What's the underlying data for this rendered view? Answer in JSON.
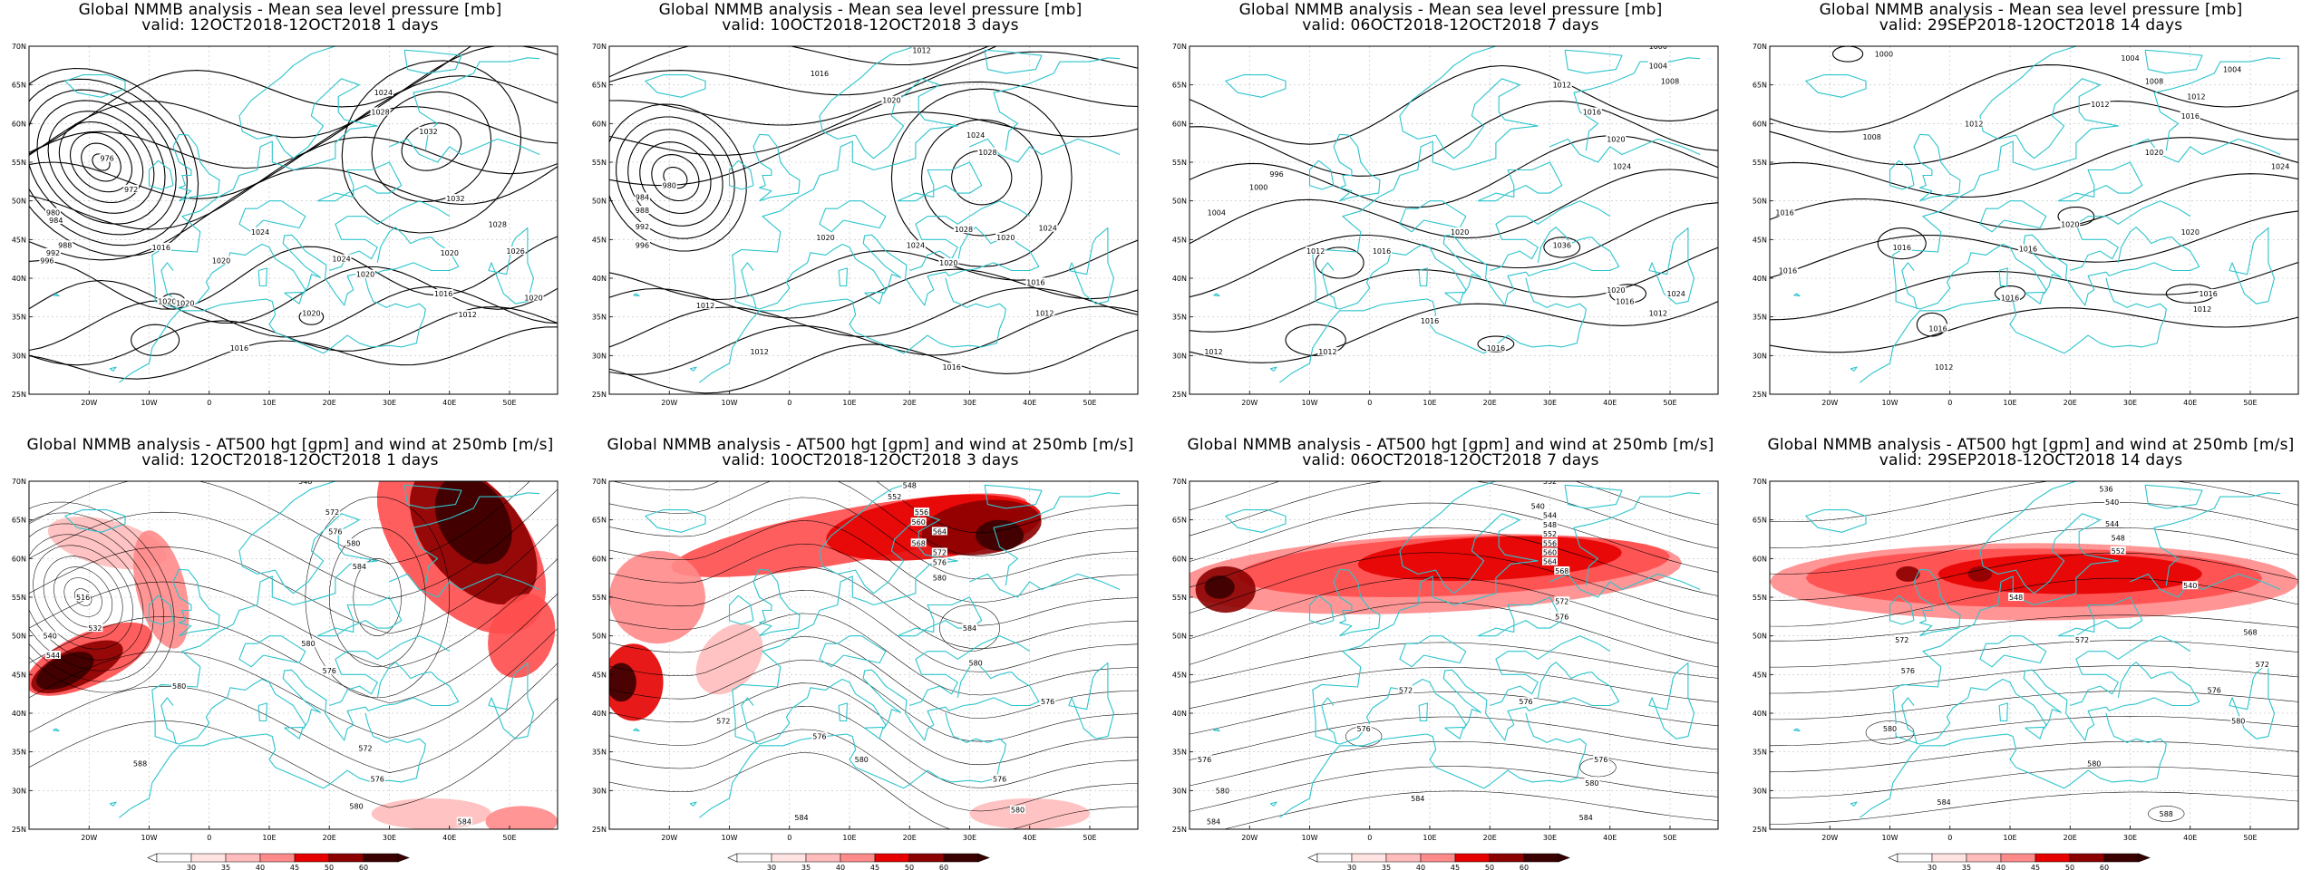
{
  "colors": {
    "coast": "#2cc4cc",
    "contour": "#000000",
    "wind_scale": [
      "#ffe3e3",
      "#ffbcbc",
      "#ff8a8a",
      "#ff4d4d",
      "#e60000",
      "#8c0000",
      "#3a0000"
    ]
  },
  "chart_data": [
    {
      "type": "contour-map",
      "title": "Global NMMB analysis - Mean sea level pressure [mb]",
      "subtitle": "valid: 12OCT2018-12OCT2018  1 days",
      "x_ticks": [
        "20W",
        "10W",
        "0",
        "10E",
        "20E",
        "30E",
        "40E",
        "50E"
      ],
      "y_ticks": [
        "70N",
        "65N",
        "60N",
        "55N",
        "50N",
        "45N",
        "40N",
        "35N",
        "30N",
        "25N"
      ],
      "contour_labels": [
        {
          "text": "976",
          "lon": -17,
          "lat": 55.5
        },
        {
          "text": "972",
          "lon": -13,
          "lat": 51.5
        },
        {
          "text": "980",
          "lon": -26,
          "lat": 48.5
        },
        {
          "text": "984",
          "lon": -25.5,
          "lat": 47.5
        },
        {
          "text": "988",
          "lon": -24,
          "lat": 44.3
        },
        {
          "text": "992",
          "lon": -26,
          "lat": 43.3
        },
        {
          "text": "996",
          "lon": -27,
          "lat": 42.3
        },
        {
          "text": "1016",
          "lon": -8,
          "lat": 44
        },
        {
          "text": "1020",
          "lon": 2,
          "lat": 42.3
        },
        {
          "text": "1024",
          "lon": 8.5,
          "lat": 46
        },
        {
          "text": "1020",
          "lon": -7,
          "lat": 37
        },
        {
          "text": "1020",
          "lon": -4,
          "lat": 36.8
        },
        {
          "text": "1020",
          "lon": 17,
          "lat": 35.5
        },
        {
          "text": "1016",
          "lon": 5,
          "lat": 31
        },
        {
          "text": "1024",
          "lon": 22,
          "lat": 42.5
        },
        {
          "text": "1024",
          "lon": 29,
          "lat": 64
        },
        {
          "text": "1028",
          "lon": 28.5,
          "lat": 61.5
        },
        {
          "text": "1032",
          "lon": 36.5,
          "lat": 59
        },
        {
          "text": "1032",
          "lon": 41,
          "lat": 50.3
        },
        {
          "text": "1028",
          "lon": 48,
          "lat": 47
        },
        {
          "text": "1020",
          "lon": 26,
          "lat": 40.5
        },
        {
          "text": "1020",
          "lon": 40,
          "lat": 43.3
        },
        {
          "text": "1026",
          "lon": 51,
          "lat": 43.5
        },
        {
          "text": "1020",
          "lon": 54,
          "lat": 37.5
        },
        {
          "text": "1016",
          "lon": 39,
          "lat": 38
        },
        {
          "text": "1012",
          "lon": 43,
          "lat": 35.3
        }
      ]
    },
    {
      "type": "contour-map",
      "title": "Global NMMB analysis - Mean sea level pressure [mb]",
      "subtitle": "valid: 10OCT2018-12OCT2018  3 days",
      "x_ticks": [
        "20W",
        "10W",
        "0",
        "10E",
        "20E",
        "30E",
        "40E",
        "50E"
      ],
      "y_ticks": [
        "70N",
        "65N",
        "60N",
        "55N",
        "50N",
        "45N",
        "40N",
        "35N",
        "30N",
        "25N"
      ],
      "contour_labels": [
        {
          "text": "980",
          "lon": -20,
          "lat": 52
        },
        {
          "text": "984",
          "lon": -24.5,
          "lat": 50.5
        },
        {
          "text": "988",
          "lon": -24.5,
          "lat": 48.8
        },
        {
          "text": "992",
          "lon": -24.5,
          "lat": 46.7
        },
        {
          "text": "996",
          "lon": -24.5,
          "lat": 44.3
        },
        {
          "text": "1012",
          "lon": -14,
          "lat": 36.5
        },
        {
          "text": "1012",
          "lon": -5,
          "lat": 30.5
        },
        {
          "text": "1016",
          "lon": 5,
          "lat": 66.5
        },
        {
          "text": "1020",
          "lon": 17,
          "lat": 63
        },
        {
          "text": "1024",
          "lon": 31,
          "lat": 58.5
        },
        {
          "text": "1028",
          "lon": 33,
          "lat": 56.3
        },
        {
          "text": "1020",
          "lon": 6,
          "lat": 45.3
        },
        {
          "text": "1024",
          "lon": 21,
          "lat": 44.3
        },
        {
          "text": "1020",
          "lon": 26.5,
          "lat": 42
        },
        {
          "text": "1028",
          "lon": 29,
          "lat": 46.3
        },
        {
          "text": "1020",
          "lon": 36,
          "lat": 45.3
        },
        {
          "text": "1024",
          "lon": 43,
          "lat": 46.5
        },
        {
          "text": "1016",
          "lon": 41,
          "lat": 39.5
        },
        {
          "text": "1012",
          "lon": 42.5,
          "lat": 35.5
        },
        {
          "text": "1016",
          "lon": 27,
          "lat": 28.5
        },
        {
          "text": "1012",
          "lon": 22,
          "lat": 69.5
        }
      ]
    },
    {
      "type": "contour-map",
      "title": "Global NMMB analysis - Mean sea level pressure [mb]",
      "subtitle": "valid: 06OCT2018-12OCT2018  7 days",
      "x_ticks": [
        "20W",
        "10W",
        "0",
        "10E",
        "20E",
        "30E",
        "40E",
        "50E"
      ],
      "y_ticks": [
        "70N",
        "65N",
        "60N",
        "55N",
        "50N",
        "45N",
        "40N",
        "35N",
        "30N",
        "25N"
      ],
      "contour_labels": [
        {
          "text": "1000",
          "lon": 48,
          "lat": 70
        },
        {
          "text": "1004",
          "lon": 48,
          "lat": 67.5
        },
        {
          "text": "1008",
          "lon": 50,
          "lat": 65.5
        },
        {
          "text": "1012",
          "lon": 32,
          "lat": 65
        },
        {
          "text": "1016",
          "lon": 37,
          "lat": 61.5
        },
        {
          "text": "1020",
          "lon": 41,
          "lat": 58
        },
        {
          "text": "1024",
          "lon": 42,
          "lat": 54.5
        },
        {
          "text": "996",
          "lon": -15.5,
          "lat": 53.5
        },
        {
          "text": "1000",
          "lon": -18.5,
          "lat": 51.8
        },
        {
          "text": "1004",
          "lon": -25.5,
          "lat": 48.5
        },
        {
          "text": "1012",
          "lon": -9,
          "lat": 43.5
        },
        {
          "text": "1016",
          "lon": 2,
          "lat": 43.5
        },
        {
          "text": "1020",
          "lon": 15,
          "lat": 46
        },
        {
          "text": "1036",
          "lon": 32,
          "lat": 44.3
        },
        {
          "text": "1020",
          "lon": 41,
          "lat": 38.5
        },
        {
          "text": "1016",
          "lon": 42.5,
          "lat": 37
        },
        {
          "text": "1024",
          "lon": 51,
          "lat": 38
        },
        {
          "text": "1012",
          "lon": 48,
          "lat": 35.5
        },
        {
          "text": "1016",
          "lon": 10,
          "lat": 34.5
        },
        {
          "text": "1016",
          "lon": 21,
          "lat": 31
        },
        {
          "text": "1012",
          "lon": -7,
          "lat": 30.5
        },
        {
          "text": "1012",
          "lon": -26,
          "lat": 30.5
        }
      ]
    },
    {
      "type": "contour-map",
      "title": "Global NMMB analysis - Mean sea level pressure [mb]",
      "subtitle": "valid: 29SEP2018-12OCT2018  14 days",
      "x_ticks": [
        "20W",
        "10W",
        "0",
        "10E",
        "20E",
        "30E",
        "40E",
        "50E"
      ],
      "y_ticks": [
        "70N",
        "65N",
        "60N",
        "55N",
        "50N",
        "45N",
        "40N",
        "35N",
        "30N",
        "25N"
      ],
      "contour_labels": [
        {
          "text": "1000",
          "lon": -11,
          "lat": 69
        },
        {
          "text": "1004",
          "lon": 30,
          "lat": 68.5
        },
        {
          "text": "1004",
          "lon": 47,
          "lat": 67
        },
        {
          "text": "1008",
          "lon": 34,
          "lat": 65.5
        },
        {
          "text": "1012",
          "lon": 25,
          "lat": 62.5
        },
        {
          "text": "1012",
          "lon": 41,
          "lat": 63.5
        },
        {
          "text": "1016",
          "lon": 40,
          "lat": 61
        },
        {
          "text": "1008",
          "lon": -13,
          "lat": 58.3
        },
        {
          "text": "1012",
          "lon": 4,
          "lat": 60
        },
        {
          "text": "1020",
          "lon": 34,
          "lat": 56.3
        },
        {
          "text": "1024",
          "lon": 55,
          "lat": 54.5
        },
        {
          "text": "1016",
          "lon": -27.5,
          "lat": 48.5
        },
        {
          "text": "1016",
          "lon": -8,
          "lat": 44
        },
        {
          "text": "1016",
          "lon": 13,
          "lat": 43.8
        },
        {
          "text": "1020",
          "lon": 20,
          "lat": 47
        },
        {
          "text": "1020",
          "lon": 40,
          "lat": 46
        },
        {
          "text": "1016",
          "lon": -27,
          "lat": 41
        },
        {
          "text": "1016",
          "lon": 10,
          "lat": 37.5
        },
        {
          "text": "1016",
          "lon": 43,
          "lat": 38
        },
        {
          "text": "1012",
          "lon": 42,
          "lat": 36
        },
        {
          "text": "1016",
          "lon": -2,
          "lat": 33.5
        },
        {
          "text": "1012",
          "lon": -1,
          "lat": 28.5
        }
      ]
    },
    {
      "type": "contour-map",
      "title": "Global NMMB analysis - AT500 hgt [gpm] and wind at 250mb [m/s]",
      "subtitle": "valid: 12OCT2018-12OCT2018  1 days",
      "x_ticks": [
        "20W",
        "10W",
        "0",
        "10E",
        "20E",
        "30E",
        "40E",
        "50E"
      ],
      "y_ticks": [
        "70N",
        "65N",
        "60N",
        "55N",
        "50N",
        "45N",
        "40N",
        "35N",
        "30N",
        "25N"
      ],
      "colorbar": [
        "30",
        "35",
        "40",
        "45",
        "50",
        "60"
      ],
      "contour_labels": [
        {
          "text": "516",
          "lon": -21,
          "lat": 55
        },
        {
          "text": "532",
          "lon": -19,
          "lat": 51
        },
        {
          "text": "540",
          "lon": -26.5,
          "lat": 50
        },
        {
          "text": "544",
          "lon": -26,
          "lat": 47.5
        },
        {
          "text": "548",
          "lon": 16,
          "lat": 70
        },
        {
          "text": "572",
          "lon": 20.5,
          "lat": 66
        },
        {
          "text": "576",
          "lon": 21,
          "lat": 63.5
        },
        {
          "text": "580",
          "lon": 24,
          "lat": 62
        },
        {
          "text": "584",
          "lon": 25,
          "lat": 59
        },
        {
          "text": "580",
          "lon": 16.5,
          "lat": 49
        },
        {
          "text": "576",
          "lon": 20,
          "lat": 45.5
        },
        {
          "text": "572",
          "lon": 26,
          "lat": 35.5
        },
        {
          "text": "576",
          "lon": 28,
          "lat": 31.5
        },
        {
          "text": "580",
          "lon": 24.5,
          "lat": 28
        },
        {
          "text": "584",
          "lon": 42.5,
          "lat": 26
        },
        {
          "text": "588",
          "lon": -11.5,
          "lat": 33.5
        },
        {
          "text": "580",
          "lon": -5,
          "lat": 43.5
        }
      ]
    },
    {
      "type": "contour-map",
      "title": "Global NMMB analysis - AT500 hgt [gpm] and wind at 250mb [m/s]",
      "subtitle": "valid: 10OCT2018-12OCT2018  3 days",
      "x_ticks": [
        "20W",
        "10W",
        "0",
        "10E",
        "20E",
        "30E",
        "40E",
        "50E"
      ],
      "y_ticks": [
        "70N",
        "65N",
        "60N",
        "55N",
        "50N",
        "45N",
        "40N",
        "35N",
        "30N",
        "25N"
      ],
      "colorbar": [
        "30",
        "35",
        "40",
        "45",
        "50",
        "60"
      ],
      "contour_labels": [
        {
          "text": "548",
          "lon": 20,
          "lat": 69.5
        },
        {
          "text": "552",
          "lon": 17.5,
          "lat": 68
        },
        {
          "text": "556",
          "lon": 22,
          "lat": 66
        },
        {
          "text": "560",
          "lon": 21.5,
          "lat": 64.7
        },
        {
          "text": "564",
          "lon": 25,
          "lat": 63.5
        },
        {
          "text": "568",
          "lon": 21.5,
          "lat": 62
        },
        {
          "text": "572",
          "lon": 25,
          "lat": 60.8
        },
        {
          "text": "576",
          "lon": 25,
          "lat": 59.5
        },
        {
          "text": "580",
          "lon": 25,
          "lat": 57.5
        },
        {
          "text": "584",
          "lon": 30,
          "lat": 51
        },
        {
          "text": "580",
          "lon": 31,
          "lat": 46.5
        },
        {
          "text": "572",
          "lon": -11,
          "lat": 39
        },
        {
          "text": "576",
          "lon": 5,
          "lat": 37
        },
        {
          "text": "580",
          "lon": 12,
          "lat": 34
        },
        {
          "text": "576",
          "lon": 35,
          "lat": 31.5
        },
        {
          "text": "580",
          "lon": 38,
          "lat": 27.5
        },
        {
          "text": "584",
          "lon": 2,
          "lat": 26.5
        },
        {
          "text": "576",
          "lon": 43,
          "lat": 41.5
        }
      ]
    },
    {
      "type": "contour-map",
      "title": "Global NMMB analysis - AT500 hgt [gpm] and wind at 250mb [m/s]",
      "subtitle": "valid: 06OCT2018-12OCT2018  7 days",
      "x_ticks": [
        "20W",
        "10W",
        "0",
        "10E",
        "20E",
        "30E",
        "40E",
        "50E"
      ],
      "y_ticks": [
        "70N",
        "65N",
        "60N",
        "55N",
        "50N",
        "45N",
        "40N",
        "35N",
        "30N",
        "25N"
      ],
      "colorbar": [
        "30",
        "35",
        "40",
        "45",
        "50",
        "60"
      ],
      "contour_labels": [
        {
          "text": "532",
          "lon": 30,
          "lat": 70
        },
        {
          "text": "540",
          "lon": 28,
          "lat": 66.8
        },
        {
          "text": "544",
          "lon": 30,
          "lat": 65.6
        },
        {
          "text": "548",
          "lon": 30,
          "lat": 64.4
        },
        {
          "text": "552",
          "lon": 30,
          "lat": 63.2
        },
        {
          "text": "556",
          "lon": 30,
          "lat": 62
        },
        {
          "text": "560",
          "lon": 30,
          "lat": 60.8
        },
        {
          "text": "564",
          "lon": 30,
          "lat": 59.6
        },
        {
          "text": "568",
          "lon": 32,
          "lat": 58.4
        },
        {
          "text": "572",
          "lon": 32,
          "lat": 54.5
        },
        {
          "text": "576",
          "lon": 32,
          "lat": 52.5
        },
        {
          "text": "572",
          "lon": 6,
          "lat": 43
        },
        {
          "text": "576",
          "lon": -1,
          "lat": 38
        },
        {
          "text": "576",
          "lon": 26,
          "lat": 41.5
        },
        {
          "text": "576",
          "lon": -27.5,
          "lat": 34
        },
        {
          "text": "580",
          "lon": -24.5,
          "lat": 30
        },
        {
          "text": "576",
          "lon": 38.5,
          "lat": 34
        },
        {
          "text": "580",
          "lon": 37,
          "lat": 31
        },
        {
          "text": "584",
          "lon": 8,
          "lat": 29
        },
        {
          "text": "584",
          "lon": 36,
          "lat": 26.5
        },
        {
          "text": "584",
          "lon": -26,
          "lat": 26
        }
      ]
    },
    {
      "type": "contour-map",
      "title": "Global NMMB analysis - AT500 hgt [gpm] and wind at 250mb [m/s]",
      "subtitle": "valid: 29SEP2018-12OCT2018  14 days",
      "x_ticks": [
        "20W",
        "10W",
        "0",
        "10E",
        "20E",
        "30E",
        "40E",
        "50E"
      ],
      "y_ticks": [
        "70N",
        "65N",
        "60N",
        "55N",
        "50N",
        "45N",
        "40N",
        "35N",
        "30N",
        "25N"
      ],
      "colorbar": [
        "30",
        "35",
        "40",
        "45",
        "50",
        "60"
      ],
      "contour_labels": [
        {
          "text": "536",
          "lon": 26,
          "lat": 69
        },
        {
          "text": "540",
          "lon": 27,
          "lat": 67.3
        },
        {
          "text": "544",
          "lon": 27,
          "lat": 64.5
        },
        {
          "text": "548",
          "lon": 28,
          "lat": 62.7
        },
        {
          "text": "552",
          "lon": 28,
          "lat": 61
        },
        {
          "text": "540",
          "lon": 40,
          "lat": 56.5
        },
        {
          "text": "548",
          "lon": 11,
          "lat": 55
        },
        {
          "text": "568",
          "lon": 50,
          "lat": 50.5
        },
        {
          "text": "572",
          "lon": -8,
          "lat": 49.5
        },
        {
          "text": "572",
          "lon": 22,
          "lat": 49.5
        },
        {
          "text": "576",
          "lon": -7,
          "lat": 45.5
        },
        {
          "text": "576",
          "lon": 44,
          "lat": 43
        },
        {
          "text": "572",
          "lon": 52,
          "lat": 46.3
        },
        {
          "text": "580",
          "lon": -10,
          "lat": 38
        },
        {
          "text": "580",
          "lon": 48,
          "lat": 39
        },
        {
          "text": "580",
          "lon": 24,
          "lat": 33.5
        },
        {
          "text": "584",
          "lon": -1,
          "lat": 28.5
        },
        {
          "text": "588",
          "lon": 36,
          "lat": 27
        }
      ]
    }
  ]
}
